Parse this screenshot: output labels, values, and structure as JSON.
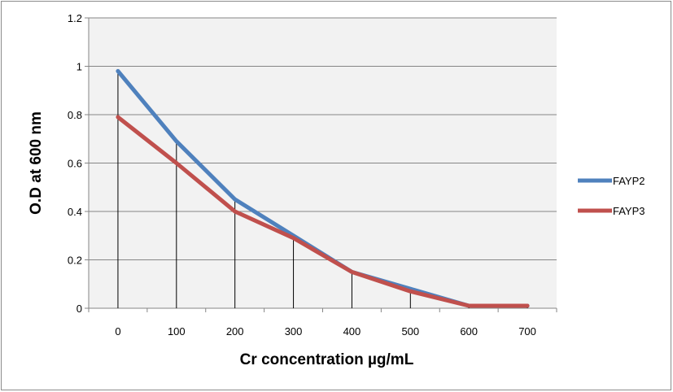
{
  "chart_data": {
    "type": "line",
    "categories": [
      "0",
      "100",
      "200",
      "300",
      "400",
      "500",
      "600",
      "700"
    ],
    "series": [
      {
        "name": "FAYP2",
        "color": "#4f81bd",
        "values": [
          0.98,
          0.69,
          0.45,
          0.3,
          0.15,
          0.08,
          0.01,
          0.01
        ]
      },
      {
        "name": "FAYP3",
        "color": "#c0504d",
        "values": [
          0.79,
          0.6,
          0.4,
          0.29,
          0.15,
          0.07,
          0.01,
          0.01
        ]
      }
    ],
    "drop_lines": true,
    "title": "",
    "xlabel": "Cr concentration µg/mL",
    "ylabel": "O.D at 600 nm",
    "ylim": [
      0,
      1.2
    ],
    "yticks": [
      "0",
      "0.2",
      "0.4",
      "0.6",
      "0.8",
      "1",
      "1.2"
    ],
    "grid": true,
    "plot_background": "#f2f2f2",
    "legend_position": "right"
  }
}
